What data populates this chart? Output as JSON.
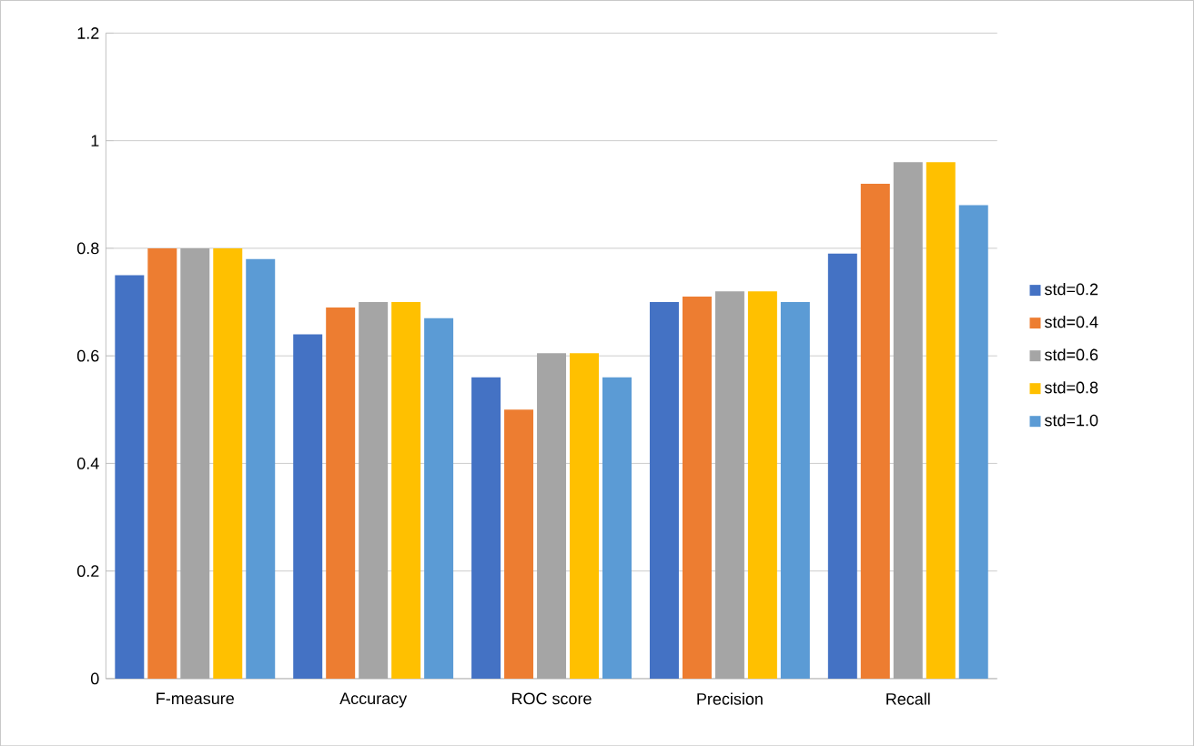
{
  "chart_data": {
    "type": "bar",
    "categories": [
      "F-measure",
      "Accuracy",
      "ROC score",
      "Precision",
      "Recall"
    ],
    "series": [
      {
        "name": "std=0.2",
        "color": "#4472c4",
        "values": [
          0.75,
          0.64,
          0.56,
          0.7,
          0.79
        ]
      },
      {
        "name": "std=0.4",
        "color": "#ed7d31",
        "values": [
          0.8,
          0.69,
          0.5,
          0.71,
          0.92
        ]
      },
      {
        "name": "std=0.6",
        "color": "#a5a5a5",
        "values": [
          0.8,
          0.7,
          0.605,
          0.72,
          0.96
        ]
      },
      {
        "name": "std=0.8",
        "color": "#ffc000",
        "values": [
          0.8,
          0.7,
          0.605,
          0.72,
          0.96
        ]
      },
      {
        "name": "std=1.0",
        "color": "#5b9bd5",
        "values": [
          0.78,
          0.67,
          0.56,
          0.7,
          0.88
        ]
      }
    ],
    "ylim": [
      0,
      1.2
    ],
    "yticks": [
      0,
      0.2,
      0.4,
      0.6,
      0.8,
      1,
      1.2
    ],
    "grid": "y",
    "legend": "right"
  }
}
